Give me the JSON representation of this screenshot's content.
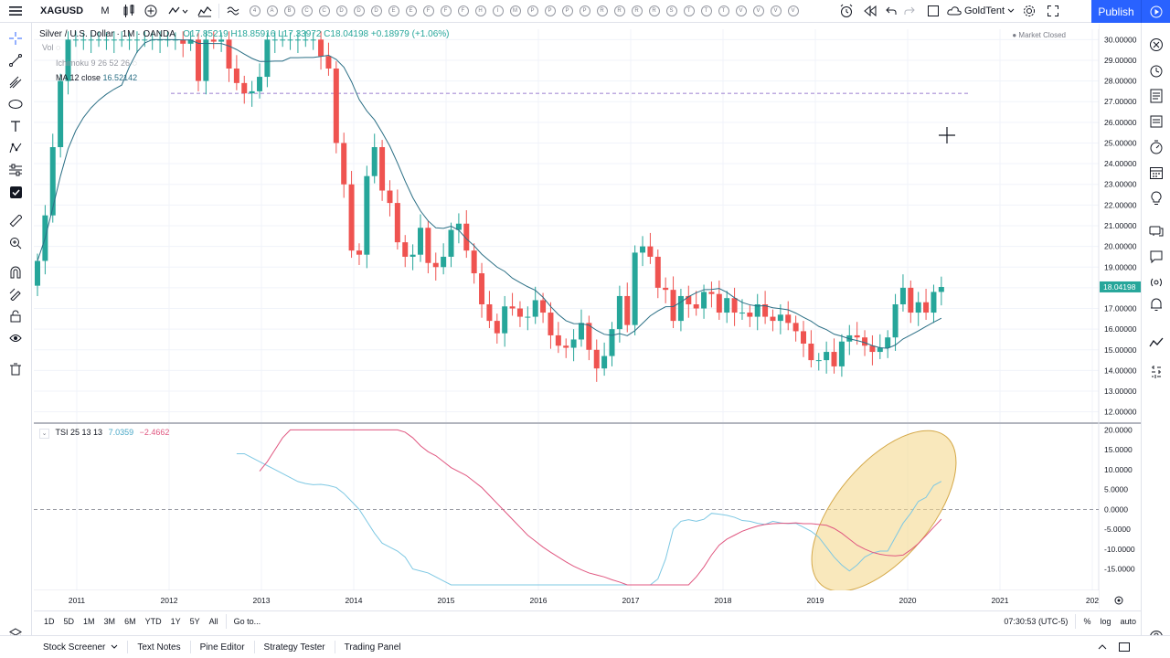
{
  "toolbar": {
    "symbol": "XAGUSD",
    "interval": "M",
    "letter_buttons": [
      "4",
      "A",
      "B",
      "C",
      "C",
      "D",
      "D",
      "D",
      "E",
      "E",
      "F",
      "F",
      "F",
      "H",
      "I",
      "M",
      "P",
      "P",
      "P",
      "P",
      "R",
      "R",
      "R",
      "R",
      "S",
      "T",
      "T",
      "T",
      "V",
      "V",
      "V",
      "V"
    ],
    "layout_name": "GoldTent",
    "publish": "Publish"
  },
  "legend": {
    "title": "Silver / U.S. Dollar · 1M · OANDA",
    "ohlc": "O17.85219 H18.85916 L17.33972 C18.04198 +0.18979 (+1.06%)",
    "vol": "Vol",
    "ichimoku": "Ichimoku 9 26 52 26",
    "ma_name": "MA 12 close",
    "ma_value": "16.52142",
    "tsi_name": "TSI 25 13 13",
    "tsi_val1": "7.0359",
    "tsi_val2": "−2.4662",
    "market_status": "Market Closed"
  },
  "chart_data": [
    {
      "type": "candlestick",
      "title": "Silver / U.S. Dollar · 1M · OANDA",
      "ylim": [
        11.5,
        30.5
      ],
      "y_ticks": [
        "30.00000",
        "29.00000",
        "28.00000",
        "27.00000",
        "26.00000",
        "25.00000",
        "24.00000",
        "23.00000",
        "22.00000",
        "21.00000",
        "20.00000",
        "19.00000",
        "18.00000",
        "17.00000",
        "16.00000",
        "15.00000",
        "14.00000",
        "13.00000",
        "12.00000"
      ],
      "x_ticks": [
        "2011",
        "2012",
        "2013",
        "2014",
        "2015",
        "2016",
        "2017",
        "2018",
        "2019",
        "2020",
        "2021",
        "202"
      ],
      "last_price": "18.04198",
      "hline": 27.4,
      "closes": [
        19.3,
        21.5,
        24.8,
        28.0,
        30.0,
        30.0,
        30.0,
        30.0,
        30.0,
        30.0,
        30.0,
        30.0,
        30.0,
        30.0,
        30.0,
        30.0,
        30.0,
        30.0,
        30.0,
        29.8,
        30.0,
        28.0,
        30.0,
        29.9,
        30.0,
        28.6,
        27.9,
        27.4,
        27.5,
        28.2,
        30.0,
        30.0,
        30.0,
        30.0,
        30.0,
        30.0,
        30.0,
        29.2,
        28.6,
        25.0,
        23.0,
        19.8,
        19.6,
        23.4,
        24.8,
        22.7,
        22.1,
        20.2,
        19.5,
        19.6,
        20.9,
        19.2,
        19.0,
        19.5,
        20.8,
        21.1,
        19.8,
        18.7,
        17.2,
        16.4,
        15.8,
        17.1,
        17.0,
        16.6,
        16.6,
        17.4,
        16.8,
        15.7,
        15.2,
        15.1,
        15.5,
        16.3,
        15.0,
        14.1,
        14.7,
        16.0,
        17.6,
        16.2,
        19.7,
        20.0,
        19.5,
        18.0,
        17.9,
        16.4,
        17.6,
        17.2,
        17.0,
        17.8,
        17.7,
        16.8,
        17.5,
        16.8,
        16.8,
        16.6,
        17.2,
        16.6,
        16.4,
        16.7,
        16.3,
        15.9,
        15.3,
        14.5,
        14.5,
        14.9,
        14.2,
        15.4,
        15.7,
        15.6,
        15.2,
        14.9,
        15.1,
        15.6,
        17.2,
        18.0,
        16.8,
        17.3,
        16.8,
        17.8,
        18.04
      ],
      "ma12_label": "MA 12 close"
    },
    {
      "type": "line",
      "title": "TSI 25 13 13",
      "ylim": [
        -19,
        21
      ],
      "y_ticks": [
        "20.0000",
        "15.0000",
        "10.0000",
        "5.0000",
        "0.0000",
        "-5.0000",
        "-10.0000",
        "-15.0000"
      ],
      "series": [
        {
          "name": "TSI",
          "color": "#7ec8e3",
          "values": [
            14,
            14,
            13,
            12,
            11,
            10,
            9,
            8,
            7,
            6.5,
            6.2,
            6.3,
            6.0,
            5.5,
            4,
            2,
            0,
            -3,
            -6,
            -8.5,
            -9.5,
            -10.5,
            -12,
            -15,
            -15.5,
            -16,
            -17,
            -18,
            -19,
            -19,
            -19,
            -19,
            -19,
            -19,
            -19,
            -19,
            -19,
            -19,
            -19,
            -19,
            -19,
            -19,
            -19,
            -19,
            -19,
            -19,
            -19,
            -19,
            -19,
            -19,
            -19,
            -19,
            -19,
            -19,
            -19,
            -17.5,
            -12.5,
            -5,
            -3,
            -2.6,
            -3,
            -2.5,
            -1,
            -1.2,
            -1.5,
            -2,
            -2.8,
            -3,
            -3.5,
            -3.8,
            -3,
            -3.4,
            -3.6,
            -3.5,
            -4.5,
            -5.5,
            -7,
            -9.5,
            -12,
            -14,
            -15.5,
            -14,
            -12,
            -11,
            -10.5,
            -10.5,
            -7,
            -3.5,
            -1,
            2,
            3,
            6,
            7.04
          ]
        },
        {
          "name": "Signal",
          "color": "#e05780",
          "values": [
            9.6,
            12,
            15,
            18,
            20,
            20,
            20,
            20,
            20,
            20,
            20,
            20,
            20,
            20,
            20,
            20,
            20,
            20,
            20,
            19.4,
            18,
            16,
            14.5,
            13.5,
            12,
            10.5,
            9.5,
            8.5,
            7,
            5.5,
            3.5,
            1.5,
            -0.5,
            -2.5,
            -4.5,
            -6.5,
            -8,
            -9.5,
            -10.8,
            -12,
            -13.2,
            -14.3,
            -15.2,
            -16,
            -16.5,
            -17,
            -17.7,
            -18.3,
            -19,
            -19,
            -19,
            -19,
            -19,
            -19,
            -19,
            -19,
            -19,
            -17,
            -14.5,
            -11.5,
            -9,
            -7.5,
            -6.5,
            -5.5,
            -4.8,
            -4.2,
            -3.8,
            -3.6,
            -3.5,
            -3.5,
            -3.4,
            -3.6,
            -3.6,
            -3.8,
            -4.0,
            -4.8,
            -6,
            -7.5,
            -9,
            -10,
            -10.8,
            -11.3,
            -11.6,
            -11.7,
            -11.5,
            -10.2,
            -8.6,
            -6.6,
            -4.5,
            -2.47
          ]
        }
      ],
      "zero_line": 0
    }
  ],
  "range_bar": {
    "items": [
      "1D",
      "5D",
      "1M",
      "3M",
      "6M",
      "YTD",
      "1Y",
      "5Y",
      "All"
    ],
    "goto": "Go to...",
    "time": "07:30:53 (UTC-5)",
    "percent": "%",
    "log": "log",
    "auto": "auto"
  },
  "footer": {
    "tabs": [
      "Stock Screener",
      "Text Notes",
      "Pine Editor",
      "Strategy Tester",
      "Trading Panel"
    ]
  },
  "colors": {
    "up": "#26a69a",
    "down": "#ef5350",
    "accent": "#2962ff",
    "ma": "#2b6f85",
    "highlight": "#f5d88f"
  }
}
